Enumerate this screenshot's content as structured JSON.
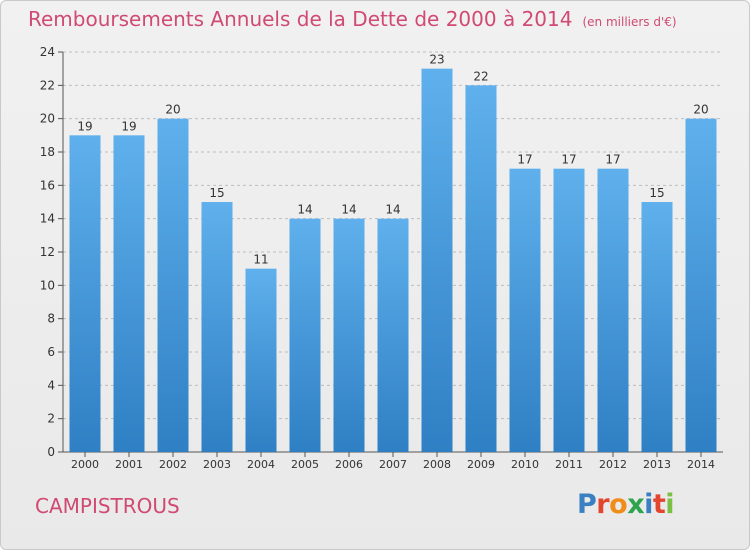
{
  "header": {
    "title": "Remboursements Annuels de la Dette de 2000 à 2014",
    "unit": "(en milliers d'€)"
  },
  "footer": {
    "commune": "CAMPISTROUS",
    "logo": [
      "P",
      "r",
      "o",
      "x",
      "i",
      "t",
      "i"
    ]
  },
  "colors": {
    "title": "#d04a73",
    "bar_top": "#5fb0ec",
    "bar_bottom": "#2f7fc4",
    "logo": [
      "#3a7fc1",
      "#e3462f",
      "#f08c18",
      "#2ea44f",
      "#3a7fc1",
      "#e3462f",
      "#7ac142"
    ]
  },
  "chart_data": {
    "type": "bar",
    "title": "Remboursements Annuels de la Dette de 2000 à 2014",
    "xlabel": "",
    "ylabel": "",
    "categories": [
      "2000",
      "2001",
      "2002",
      "2003",
      "2004",
      "2005",
      "2006",
      "2007",
      "2008",
      "2009",
      "2010",
      "2011",
      "2012",
      "2013",
      "2014"
    ],
    "values": [
      19,
      19,
      20,
      15,
      11,
      14,
      14,
      14,
      23,
      22,
      17,
      17,
      17,
      15,
      20
    ],
    "ylim": [
      0,
      24
    ],
    "yticks": [
      0,
      2,
      4,
      6,
      8,
      10,
      12,
      14,
      16,
      18,
      20,
      22,
      24
    ],
    "grid": true,
    "legend": "none"
  }
}
